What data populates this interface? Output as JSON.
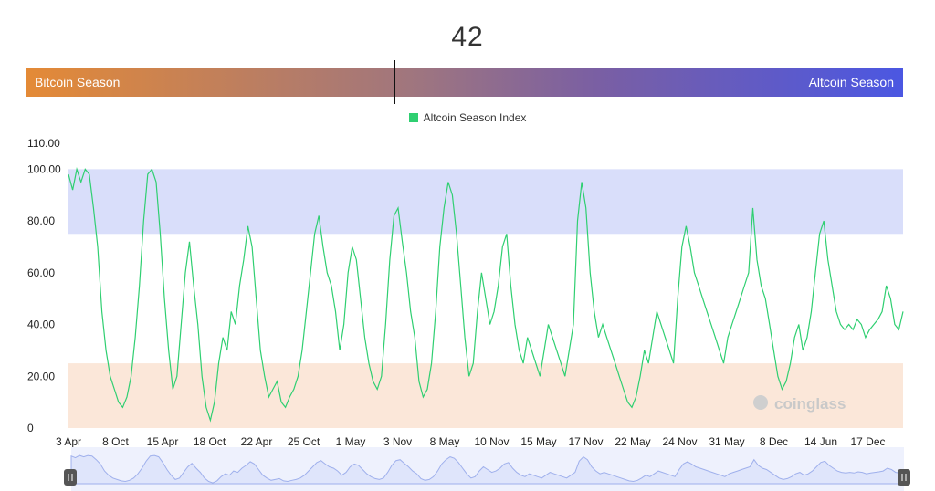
{
  "index": {
    "value": "42",
    "position": 0.42
  },
  "season_bar": {
    "left_label": "Bitcoin Season",
    "right_label": "Altcoin Season"
  },
  "watermark": "coinglass",
  "chart_data": {
    "type": "line",
    "title": "",
    "xlabel": "",
    "ylabel": "",
    "ylim": [
      0,
      110
    ],
    "ytick_labels": [
      "0",
      "20.00",
      "40.00",
      "60.00",
      "80.00",
      "100.00",
      "110.00"
    ],
    "ytick_values": [
      0,
      20,
      40,
      60,
      80,
      100,
      110
    ],
    "xtick_labels": [
      "3 Apr",
      "8 Oct",
      "15 Apr",
      "18 Oct",
      "22 Apr",
      "25 Oct",
      "1 May",
      "3 Nov",
      "8 May",
      "10 Nov",
      "15 May",
      "17 Nov",
      "22 May",
      "24 Nov",
      "31 May",
      "8 Dec",
      "14 Jun",
      "17 Dec"
    ],
    "bands": [
      {
        "name": "altcoin-zone",
        "from": 75,
        "to": 100,
        "color": "#d9defa"
      },
      {
        "name": "bitcoin-zone",
        "from": 0,
        "to": 25,
        "color": "#fbe7d9"
      }
    ],
    "legend": [
      "Altcoin Season Index"
    ],
    "legend_position": "top-center",
    "line_color": "#2fcf71",
    "series": [
      {
        "name": "Altcoin Season Index",
        "values": [
          98,
          92,
          100,
          95,
          100,
          98,
          85,
          70,
          45,
          30,
          20,
          15,
          10,
          8,
          12,
          20,
          35,
          55,
          80,
          98,
          100,
          95,
          75,
          50,
          30,
          15,
          20,
          40,
          60,
          72,
          55,
          40,
          20,
          8,
          3,
          10,
          25,
          35,
          30,
          45,
          40,
          55,
          65,
          78,
          70,
          50,
          30,
          20,
          12,
          15,
          18,
          10,
          8,
          12,
          15,
          20,
          30,
          45,
          60,
          75,
          82,
          70,
          60,
          55,
          45,
          30,
          40,
          60,
          70,
          65,
          50,
          35,
          25,
          18,
          15,
          20,
          40,
          65,
          82,
          85,
          72,
          60,
          45,
          35,
          18,
          12,
          15,
          25,
          45,
          70,
          85,
          95,
          90,
          75,
          55,
          35,
          20,
          25,
          45,
          60,
          50,
          40,
          45,
          55,
          70,
          75,
          55,
          40,
          30,
          25,
          35,
          30,
          25,
          20,
          30,
          40,
          35,
          30,
          25,
          20,
          30,
          40,
          80,
          95,
          85,
          60,
          45,
          35,
          40,
          35,
          30,
          25,
          20,
          15,
          10,
          8,
          12,
          20,
          30,
          25,
          35,
          45,
          40,
          35,
          30,
          25,
          50,
          70,
          78,
          70,
          60,
          55,
          50,
          45,
          40,
          35,
          30,
          25,
          35,
          40,
          45,
          50,
          55,
          60,
          85,
          65,
          55,
          50,
          40,
          30,
          20,
          15,
          18,
          25,
          35,
          40,
          30,
          35,
          45,
          60,
          75,
          80,
          65,
          55,
          45,
          40,
          38,
          40,
          38,
          42,
          40,
          35,
          38,
          40,
          42,
          45,
          55,
          50,
          40,
          38,
          45
        ]
      }
    ]
  }
}
